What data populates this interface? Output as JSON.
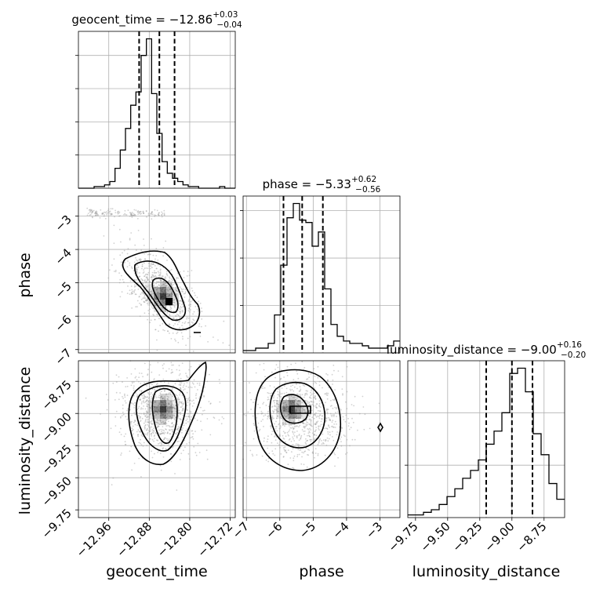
{
  "chart_data": {
    "type": "corner",
    "parameters": [
      "geocent_time",
      "phase",
      "luminosity_distance"
    ],
    "marginals": [
      {
        "parameter": "geocent_time",
        "title_main": "geocent_time = −12.86",
        "title_sup": "+0.03",
        "title_sub": "−0.04",
        "median": -12.86,
        "quantiles": [
          -12.9,
          -12.86,
          -12.83
        ],
        "xlim": [
          -13.02,
          -12.71
        ],
        "ticks": [
          -12.96,
          -12.88,
          -12.8,
          -12.72
        ],
        "tick_labels": [
          "−12.96",
          "−12.88",
          "−12.80",
          "−12.72"
        ],
        "hist_counts": [
          0,
          0,
          0,
          1,
          1,
          2,
          4,
          12,
          23,
          36,
          50,
          58,
          80,
          90,
          57,
          33,
          16,
          9,
          6,
          4,
          2,
          1,
          1,
          0,
          0,
          0,
          0,
          1,
          0,
          0
        ],
        "hist_yticks": [
          20,
          40,
          60,
          80
        ],
        "xlabel": "geocent_time"
      },
      {
        "parameter": "phase",
        "title_main": "phase = −5.33",
        "title_sup": "+0.62",
        "title_sub": "−0.56",
        "median": -5.33,
        "quantiles": [
          -5.89,
          -5.33,
          -4.71
        ],
        "xlim": [
          -7.1,
          -2.4
        ],
        "ticks": [
          -7,
          -6,
          -5,
          -4,
          -3
        ],
        "tick_labels": [
          "−7",
          "−6",
          "−5",
          "−4",
          "−3"
        ],
        "hist_counts": [
          1,
          1,
          2,
          2,
          4,
          16,
          37,
          57,
          63,
          56,
          55,
          45,
          51,
          27,
          12,
          7,
          5,
          4,
          4,
          3,
          2,
          2,
          2,
          3,
          5
        ],
        "hist_yticks": [
          20,
          40,
          60
        ],
        "xlabel": "phase"
      },
      {
        "parameter": "luminosity_distance",
        "title_main": "luminosity_distance = −9.00",
        "title_sup": "+0.16",
        "title_sub": "−0.20",
        "median": -9.0,
        "quantiles": [
          -9.2,
          -9.0,
          -8.84
        ],
        "xlim": [
          -9.81,
          -8.59
        ],
        "ticks": [
          -9.75,
          -9.5,
          -9.25,
          -9.0,
          -8.75
        ],
        "tick_labels": [
          "−9.75",
          "−9.50",
          "−9.25",
          "−9.00",
          "−8.75"
        ],
        "hist_counts": [
          1,
          1,
          2,
          3,
          5,
          8,
          11,
          15,
          18,
          22,
          28,
          33,
          40,
          55,
          57,
          48,
          32,
          24,
          13,
          7
        ],
        "hist_yticks": [
          20,
          40
        ],
        "xlabel": "luminosity_distance"
      }
    ],
    "joint_panels": [
      {
        "x": "geocent_time",
        "y": "phase",
        "ylabel": "phase",
        "ylim": [
          -7.1,
          -2.4
        ],
        "y_ticks": [
          -7,
          -6,
          -5,
          -4,
          -3
        ],
        "y_tick_labels": [
          "−7",
          "−6",
          "−5",
          "−4",
          "−3"
        ]
      },
      {
        "x": "geocent_time",
        "y": "luminosity_distance",
        "ylabel": "luminosity_distance",
        "ylim": [
          -9.81,
          -8.59
        ],
        "y_ticks": [
          -9.75,
          -9.5,
          -9.25,
          -9.0,
          -8.75
        ],
        "y_tick_labels": [
          "−9.75",
          "−9.50",
          "−9.25",
          "−9.00",
          "−8.75"
        ]
      },
      {
        "x": "phase",
        "y": "luminosity_distance"
      }
    ],
    "grid": true
  }
}
